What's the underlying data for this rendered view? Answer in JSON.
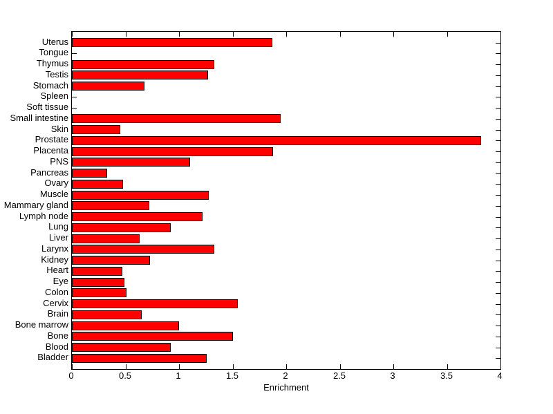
{
  "chart_data": {
    "type": "bar",
    "orientation": "horizontal",
    "title": "",
    "xlabel": "Enrichment",
    "ylabel": "",
    "xlim": [
      0,
      4
    ],
    "xticks": [
      0,
      0.5,
      1,
      1.5,
      2,
      2.5,
      3,
      3.5,
      4
    ],
    "xtick_labels": [
      "0",
      "0.5",
      "1",
      "1.5",
      "2",
      "2.5",
      "3",
      "3.5",
      "4"
    ],
    "grid": false,
    "legend": "none",
    "bar_color": "#ff0000",
    "bar_edge_color": "#000000",
    "background_color": "#ffffff",
    "categories_top_to_bottom": [
      "Uterus",
      "Tongue",
      "Thymus",
      "Testis",
      "Stomach",
      "Spleen",
      "Soft tissue",
      "Small intestine",
      "Skin",
      "Prostate",
      "Placenta",
      "PNS",
      "Pancreas",
      "Ovary",
      "Muscle",
      "Mammary gland",
      "Lymph node",
      "Lung",
      "Liver",
      "Larynx",
      "Kidney",
      "Heart",
      "Eye",
      "Colon",
      "Cervix",
      "Brain",
      "Bone marrow",
      "Bone",
      "Blood",
      "Bladder"
    ],
    "values": [
      1.87,
      0,
      1.33,
      1.27,
      0.68,
      0,
      0,
      1.95,
      0.45,
      3.82,
      1.88,
      1.1,
      0.33,
      0.48,
      1.28,
      0.72,
      1.22,
      0.92,
      0.63,
      1.33,
      0.73,
      0.47,
      0.49,
      0.51,
      1.55,
      0.65,
      1.0,
      1.5,
      0.92,
      1.26
    ]
  }
}
